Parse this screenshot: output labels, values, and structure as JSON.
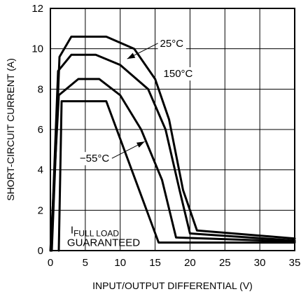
{
  "chart_data": {
    "type": "line",
    "xlabel": "INPUT/OUTPUT DIFFERENTIAL (V)",
    "ylabel": "SHORT-CIRCUIT CURRENT (A)",
    "xlim": [
      0,
      35
    ],
    "ylim": [
      0,
      12
    ],
    "xticks": [
      0,
      5,
      10,
      15,
      20,
      25,
      30,
      35
    ],
    "yticks": [
      0,
      2,
      4,
      6,
      8,
      10,
      12
    ],
    "grid": true,
    "series": [
      {
        "name": "25°C",
        "points": [
          [
            0.2,
            0
          ],
          [
            1.3,
            9.6
          ],
          [
            3,
            10.6
          ],
          [
            8,
            10.6
          ],
          [
            12,
            10.0
          ],
          [
            15,
            8.5
          ],
          [
            17,
            6.5
          ],
          [
            19,
            3.0
          ],
          [
            21,
            1.0
          ],
          [
            35,
            0.6
          ]
        ]
      },
      {
        "name": "150°C",
        "points": [
          [
            0.1,
            0
          ],
          [
            1.1,
            8.9
          ],
          [
            3,
            9.7
          ],
          [
            6.5,
            9.7
          ],
          [
            10,
            9.2
          ],
          [
            14,
            8.0
          ],
          [
            16.5,
            6.0
          ],
          [
            18.5,
            3.0
          ],
          [
            20,
            0.85
          ],
          [
            35,
            0.5
          ]
        ]
      },
      {
        "name": "",
        "points": [
          [
            0,
            0
          ],
          [
            1.2,
            7.7
          ],
          [
            4,
            8.5
          ],
          [
            7,
            8.5
          ],
          [
            10,
            7.7
          ],
          [
            13,
            6.0
          ],
          [
            16,
            3.5
          ],
          [
            18,
            0.65
          ],
          [
            35,
            0.45
          ]
        ]
      },
      {
        "name": "−55°C",
        "points": [
          [
            1.2,
            0
          ],
          [
            1.6,
            7.4
          ],
          [
            8,
            7.4
          ],
          [
            15.5,
            0.4
          ],
          [
            35,
            0.4
          ]
        ]
      }
    ],
    "annotations": [
      {
        "text": "25°C",
        "label_at": [
          15.7,
          10.1
        ],
        "arrow_to": [
          11.0,
          9.5
        ]
      },
      {
        "text": "150°C",
        "label_at": [
          16.2,
          8.6
        ]
      },
      {
        "text": "−55°C",
        "label_at": [
          4.2,
          4.4
        ],
        "arrow_to": [
          13.5,
          5.4
        ]
      },
      {
        "text": "I",
        "subscript": "FULL LOAD",
        "line2": "GUARANTEED",
        "label_at": [
          2.9,
          0.85
        ]
      }
    ]
  }
}
